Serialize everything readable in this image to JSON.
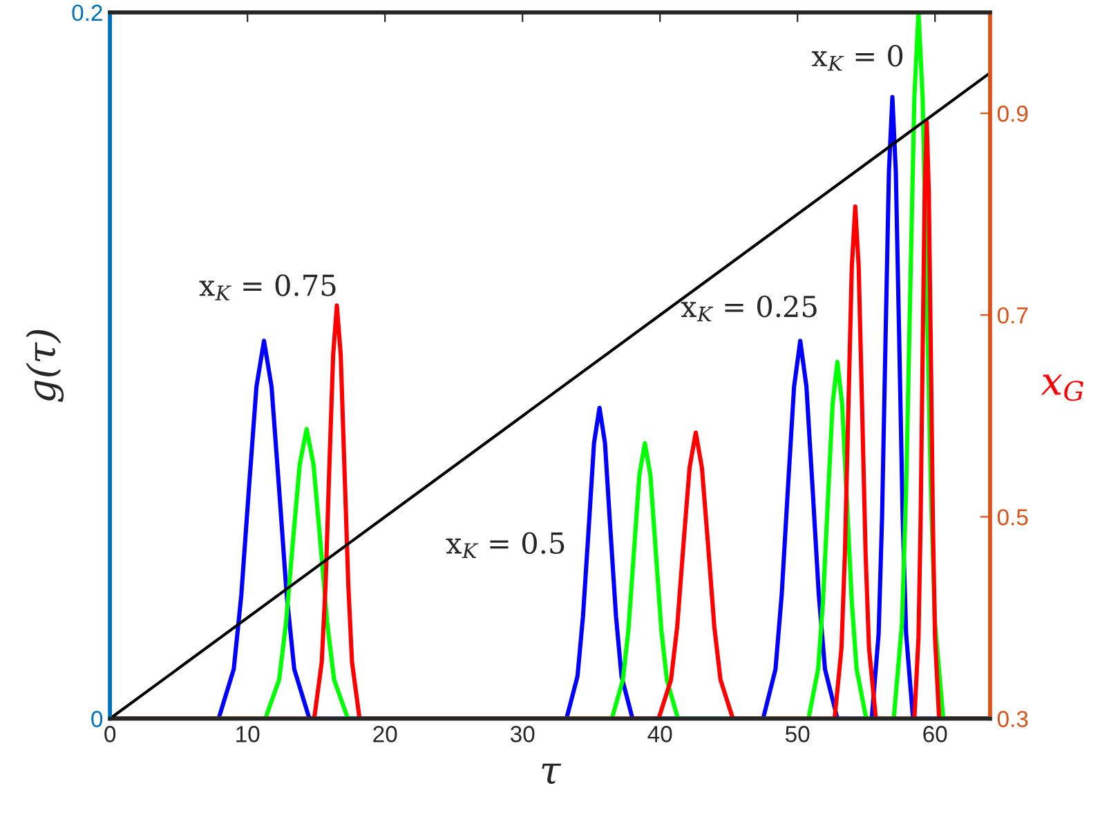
{
  "chart_data": {
    "type": "line",
    "xlabel": "τ",
    "ylabel": "g(τ)",
    "y2label": "x$_{G}$",
    "xlim": [
      0,
      64
    ],
    "xticks": [
      0,
      10,
      20,
      30,
      40,
      50,
      60
    ],
    "ylim": [
      0,
      0.2
    ],
    "yticks": [
      0,
      0.2
    ],
    "y2lim": [
      0.3,
      1.0
    ],
    "y2ticks": [
      0.3,
      0.5,
      0.7,
      0.9
    ],
    "grid": false,
    "legend": false,
    "marker": "none",
    "line_style": "solid",
    "series": [
      {
        "color": "#0000ff",
        "x": [
          0,
          7.9,
          9.0,
          9.55,
          10.1,
          10.65,
          11.2,
          11.75,
          12.3,
          12.85,
          13.4,
          14.5,
          33.2,
          34.0,
          34.4,
          34.8,
          35.2,
          35.6,
          36.0,
          36.4,
          36.8,
          37.2,
          38.0,
          47.5,
          48.4,
          48.85,
          49.3,
          49.75,
          50.2,
          50.65,
          51.1,
          51.55,
          52.0,
          52.9,
          55.4,
          55.9,
          56.15,
          56.4,
          56.65,
          56.9,
          57.15,
          57.4,
          57.65,
          57.9,
          58.4,
          64
        ],
        "values": [
          0,
          0,
          0.014,
          0.035,
          0.065,
          0.094,
          0.107,
          0.094,
          0.065,
          0.035,
          0.014,
          0,
          0,
          0.012,
          0.029,
          0.053,
          0.078,
          0.088,
          0.078,
          0.053,
          0.029,
          0.012,
          0,
          0,
          0.014,
          0.035,
          0.065,
          0.094,
          0.107,
          0.094,
          0.065,
          0.035,
          0.014,
          0,
          0,
          0.024,
          0.057,
          0.107,
          0.155,
          0.176,
          0.155,
          0.107,
          0.057,
          0.024,
          0,
          0
        ]
      },
      {
        "color": "#00ff00",
        "x": [
          0,
          11.3,
          12.3,
          12.8,
          13.3,
          13.8,
          14.3,
          14.8,
          15.3,
          15.8,
          16.3,
          17.3,
          36.5,
          37.3,
          37.7,
          38.1,
          38.5,
          38.9,
          39.3,
          39.7,
          40.1,
          40.5,
          41.3,
          50.8,
          51.5,
          51.85,
          52.2,
          52.55,
          52.9,
          53.25,
          53.6,
          53.95,
          54.3,
          55.0,
          57.0,
          57.6,
          57.9,
          58.2,
          58.5,
          58.8,
          59.1,
          59.4,
          59.7,
          60.0,
          60.6,
          64
        ],
        "values": [
          0,
          0,
          0.011,
          0.027,
          0.05,
          0.072,
          0.082,
          0.072,
          0.05,
          0.027,
          0.011,
          0,
          0,
          0.011,
          0.025,
          0.047,
          0.069,
          0.078,
          0.069,
          0.047,
          0.025,
          0.011,
          0,
          0,
          0.014,
          0.033,
          0.061,
          0.089,
          0.101,
          0.089,
          0.061,
          0.033,
          0.014,
          0,
          0,
          0.027,
          0.065,
          0.121,
          0.176,
          0.2,
          0.176,
          0.121,
          0.065,
          0.027,
          0,
          0
        ]
      },
      {
        "color": "#ff0000",
        "x": [
          0,
          14.85,
          15.4,
          15.68,
          15.95,
          16.23,
          16.5,
          16.78,
          17.05,
          17.33,
          17.6,
          18.15,
          39.9,
          40.8,
          41.25,
          41.7,
          42.15,
          42.6,
          43.05,
          43.5,
          43.95,
          44.4,
          45.3,
          52.7,
          53.2,
          53.45,
          53.7,
          53.95,
          54.2,
          54.45,
          54.7,
          54.95,
          55.2,
          55.7,
          58.5,
          58.8,
          58.95,
          59.1,
          59.25,
          59.4,
          59.55,
          59.7,
          59.85,
          60.0,
          60.3,
          64
        ],
        "values": [
          0,
          0,
          0.016,
          0.038,
          0.071,
          0.103,
          0.117,
          0.103,
          0.071,
          0.038,
          0.016,
          0,
          0,
          0.011,
          0.026,
          0.049,
          0.071,
          0.081,
          0.071,
          0.049,
          0.026,
          0.011,
          0,
          0,
          0.02,
          0.047,
          0.088,
          0.128,
          0.145,
          0.128,
          0.088,
          0.047,
          0.02,
          0,
          0,
          0.023,
          0.055,
          0.103,
          0.149,
          0.169,
          0.149,
          0.103,
          0.055,
          0.023,
          0,
          0
        ]
      },
      {
        "color": "#000000",
        "axis": "y2",
        "x": [
          0,
          64
        ],
        "values": [
          0.3,
          0.94
        ]
      }
    ],
    "annotations": [
      "x$_{K}$ = 0.75",
      "x$_{K}$ = 0.5",
      "x$_{K}$ = 0.25",
      "x$_{K}$ = 0"
    ]
  }
}
